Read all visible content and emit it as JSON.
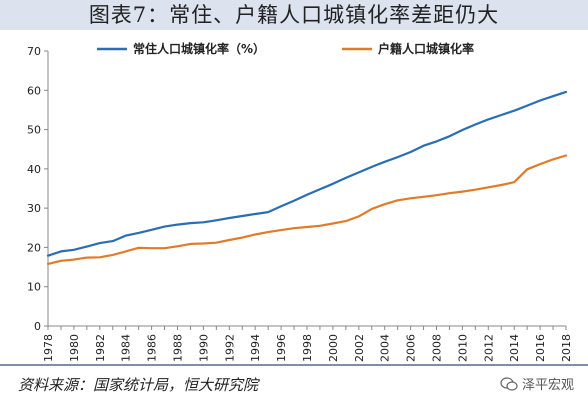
{
  "title": "图表7：常住、户籍人口城镇化率差距仍大",
  "source": "资料来源：国家统计局，恒大研究院",
  "watermark": "泽平宏观",
  "chart_data": {
    "type": "line",
    "x": [
      1978,
      1979,
      1980,
      1981,
      1982,
      1983,
      1984,
      1985,
      1986,
      1987,
      1988,
      1989,
      1990,
      1991,
      1992,
      1993,
      1994,
      1995,
      1996,
      1997,
      1998,
      1999,
      2000,
      2001,
      2002,
      2003,
      2004,
      2005,
      2006,
      2007,
      2008,
      2009,
      2010,
      2011,
      2012,
      2013,
      2014,
      2015,
      2016,
      2017,
      2018
    ],
    "x_tick_labels": [
      "1978",
      "1980",
      "1982",
      "1984",
      "1986",
      "1988",
      "1990",
      "1992",
      "1994",
      "1996",
      "1998",
      "2000",
      "2002",
      "2004",
      "2006",
      "2008",
      "2010",
      "2012",
      "2014",
      "2016",
      "2018"
    ],
    "ylim": [
      0,
      70
    ],
    "y_ticks": [
      0,
      10,
      20,
      30,
      40,
      50,
      60,
      70
    ],
    "grid": false,
    "legend_position": "top",
    "series": [
      {
        "name": "常住人口城镇化率（%）",
        "color": "#2a6db5",
        "values": [
          17.9,
          19.0,
          19.4,
          20.2,
          21.1,
          21.6,
          23.0,
          23.7,
          24.5,
          25.3,
          25.8,
          26.2,
          26.4,
          26.9,
          27.5,
          28.0,
          28.5,
          29.0,
          30.5,
          31.9,
          33.4,
          34.8,
          36.2,
          37.7,
          39.1,
          40.5,
          41.8,
          43.0,
          44.3,
          45.9,
          47.0,
          48.3,
          49.9,
          51.3,
          52.6,
          53.7,
          54.8,
          56.1,
          57.4,
          58.5,
          59.6
        ]
      },
      {
        "name": "户籍人口城镇化率",
        "color": "#e07b2a",
        "values": [
          15.8,
          16.6,
          16.9,
          17.4,
          17.5,
          18.1,
          19.0,
          19.9,
          19.8,
          19.8,
          20.3,
          20.9,
          21.0,
          21.2,
          21.9,
          22.5,
          23.3,
          23.9,
          24.4,
          24.9,
          25.2,
          25.5,
          26.1,
          26.7,
          27.9,
          29.8,
          31.0,
          32.0,
          32.5,
          32.9,
          33.3,
          33.8,
          34.2,
          34.7,
          35.3,
          35.9,
          36.6,
          39.9,
          41.2,
          42.4,
          43.4
        ]
      }
    ]
  }
}
